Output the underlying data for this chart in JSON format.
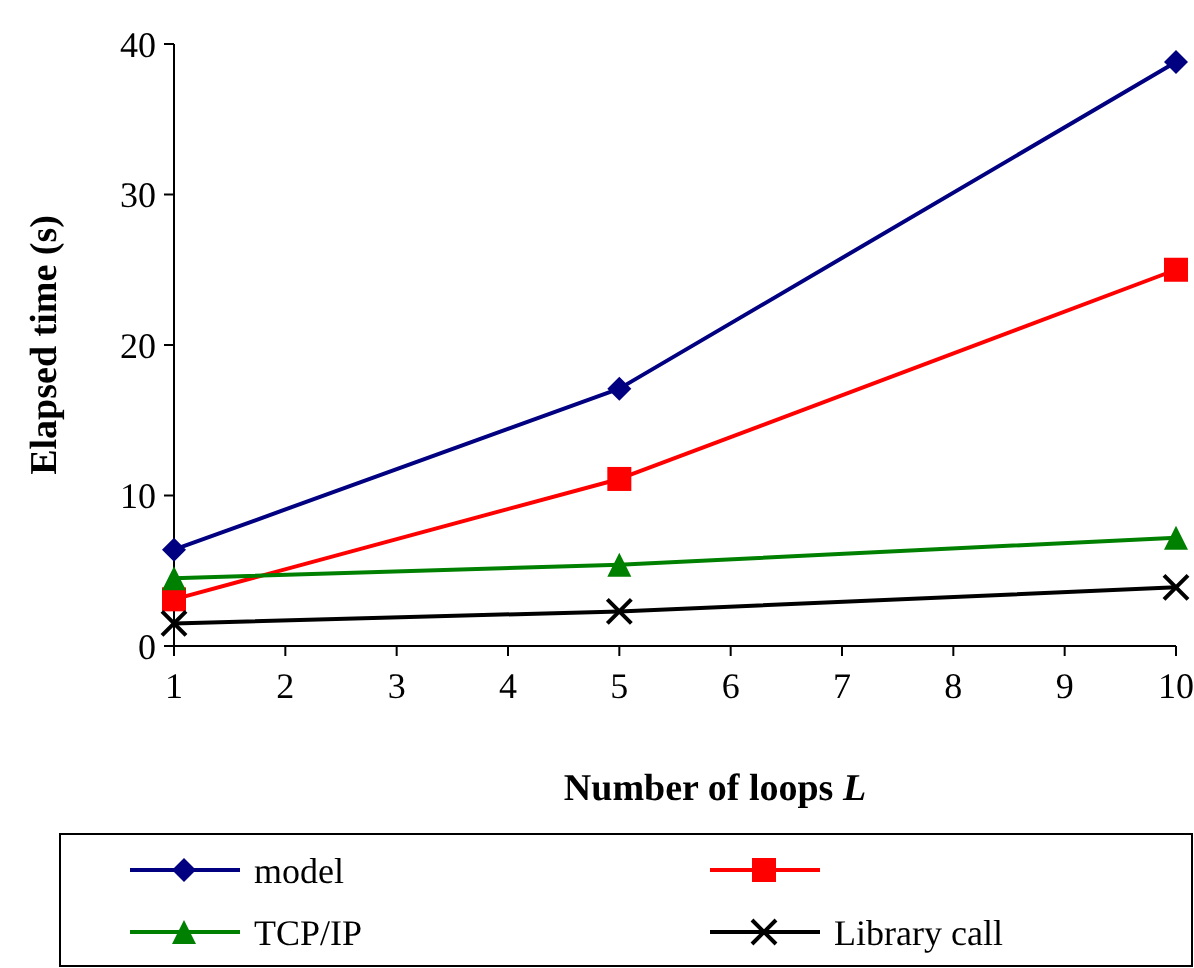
{
  "chart_data": {
    "type": "line",
    "xlabel": "Number of loops L",
    "ylabel": "Elapsed time (s)",
    "x": [
      1,
      5,
      10
    ],
    "xlim": [
      1,
      10
    ],
    "xticks": [
      1,
      2,
      3,
      4,
      5,
      6,
      7,
      8,
      9,
      10
    ],
    "ylim": [
      0,
      40
    ],
    "yticks": [
      0,
      10,
      20,
      30,
      40
    ],
    "legend": "bottom",
    "grid": false,
    "series": [
      {
        "name": "model",
        "color": "#000080",
        "marker": "diamond",
        "values": [
          6.4,
          17.1,
          38.8
        ]
      },
      {
        "color": "#ff0000",
        "marker": "square",
        "values": [
          3.1,
          11.1,
          25.0
        ]
      },
      {
        "name": "TCP/IP",
        "color": "#008000",
        "marker": "triangle",
        "values": [
          4.5,
          5.4,
          7.2
        ]
      },
      {
        "name": "Library call",
        "color": "#000000",
        "marker": "cross",
        "values": [
          1.5,
          2.3,
          3.9
        ]
      }
    ]
  }
}
